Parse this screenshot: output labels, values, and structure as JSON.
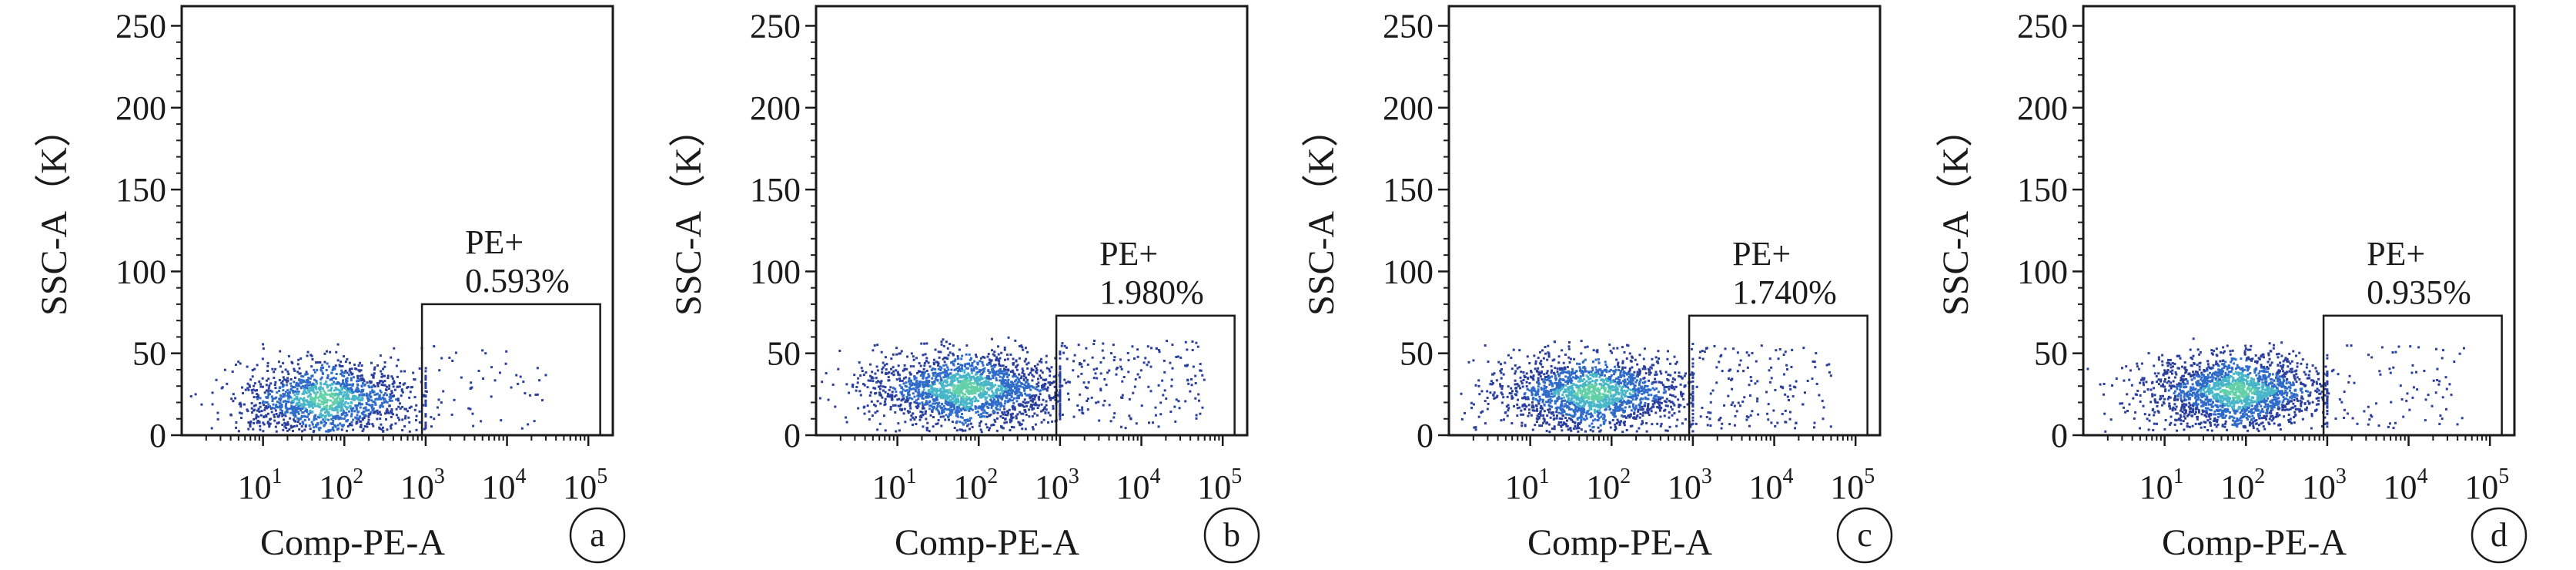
{
  "chart_data": [
    {
      "type": "scatter",
      "panel": "a",
      "xlabel": "Comp-PE-A",
      "ylabel": "SSC-A（K）",
      "xscale": "log",
      "xlim": [
        1,
        200000
      ],
      "ylim": [
        0,
        262
      ],
      "yticks": [
        0,
        50,
        100,
        150,
        200,
        250
      ],
      "xticks": [
        10,
        100,
        1000,
        10000,
        100000
      ],
      "gate": {
        "name": "PE+",
        "percent": "0.593%",
        "x_range": [
          900,
          140000
        ],
        "y_range": [
          0,
          80
        ]
      },
      "points_note": "dense cluster near x 10-300, y 5-55; few events in gate",
      "cluster": {
        "x_center": 60,
        "x_spread": 0.55,
        "y_center": 22,
        "y_max": 58,
        "count": 1400,
        "gate_count": 55,
        "gate_x_max": 30000,
        "gate_y_max": 55
      }
    },
    {
      "type": "scatter",
      "panel": "b",
      "xlabel": "Comp-PE-A",
      "ylabel": "SSC-A（K）",
      "xscale": "log",
      "xlim": [
        1,
        200000
      ],
      "ylim": [
        0,
        262
      ],
      "yticks": [
        0,
        50,
        100,
        150,
        200,
        250
      ],
      "xticks": [
        10,
        100,
        1000,
        10000,
        100000
      ],
      "gate": {
        "name": "PE+",
        "percent": "1.980%",
        "x_range": [
          900,
          140000
        ],
        "y_range": [
          0,
          73
        ]
      },
      "cluster": {
        "x_center": 70,
        "x_spread": 0.6,
        "y_center": 28,
        "y_max": 60,
        "count": 1900,
        "gate_count": 180,
        "gate_x_max": 60000,
        "gate_y_max": 58
      }
    },
    {
      "type": "scatter",
      "panel": "c",
      "xlabel": "Comp-PE-A",
      "ylabel": "SSC-A（K）",
      "xscale": "log",
      "xlim": [
        1,
        200000
      ],
      "ylim": [
        0,
        262
      ],
      "yticks": [
        0,
        50,
        100,
        150,
        200,
        250
      ],
      "xticks": [
        10,
        100,
        1000,
        10000,
        100000
      ],
      "gate": {
        "name": "PE+",
        "percent": "1.740%",
        "x_range": [
          900,
          140000
        ],
        "y_range": [
          0,
          73
        ]
      },
      "cluster": {
        "x_center": 60,
        "x_spread": 0.6,
        "y_center": 26,
        "y_max": 58,
        "count": 1800,
        "gate_count": 150,
        "gate_x_max": 50000,
        "gate_y_max": 55
      }
    },
    {
      "type": "scatter",
      "panel": "d",
      "xlabel": "Comp-PE-A",
      "ylabel": "SSC-A（K）",
      "xscale": "log",
      "xlim": [
        1,
        200000
      ],
      "ylim": [
        0,
        262
      ],
      "yticks": [
        0,
        50,
        100,
        150,
        200,
        250
      ],
      "xticks": [
        10,
        100,
        1000,
        10000,
        100000
      ],
      "gate": {
        "name": "PE+",
        "percent": "0.935%",
        "x_range": [
          900,
          140000
        ],
        "y_range": [
          0,
          73
        ]
      },
      "cluster": {
        "x_center": 80,
        "x_spread": 0.55,
        "y_center": 27,
        "y_max": 60,
        "count": 1900,
        "gate_count": 85,
        "gate_x_max": 50000,
        "gate_y_max": 55
      }
    }
  ],
  "colors": {
    "sparse": "#2a3f9d",
    "mid": "#2f6bc9",
    "dense": "#47b6c8",
    "densest": "#63d0a8"
  }
}
